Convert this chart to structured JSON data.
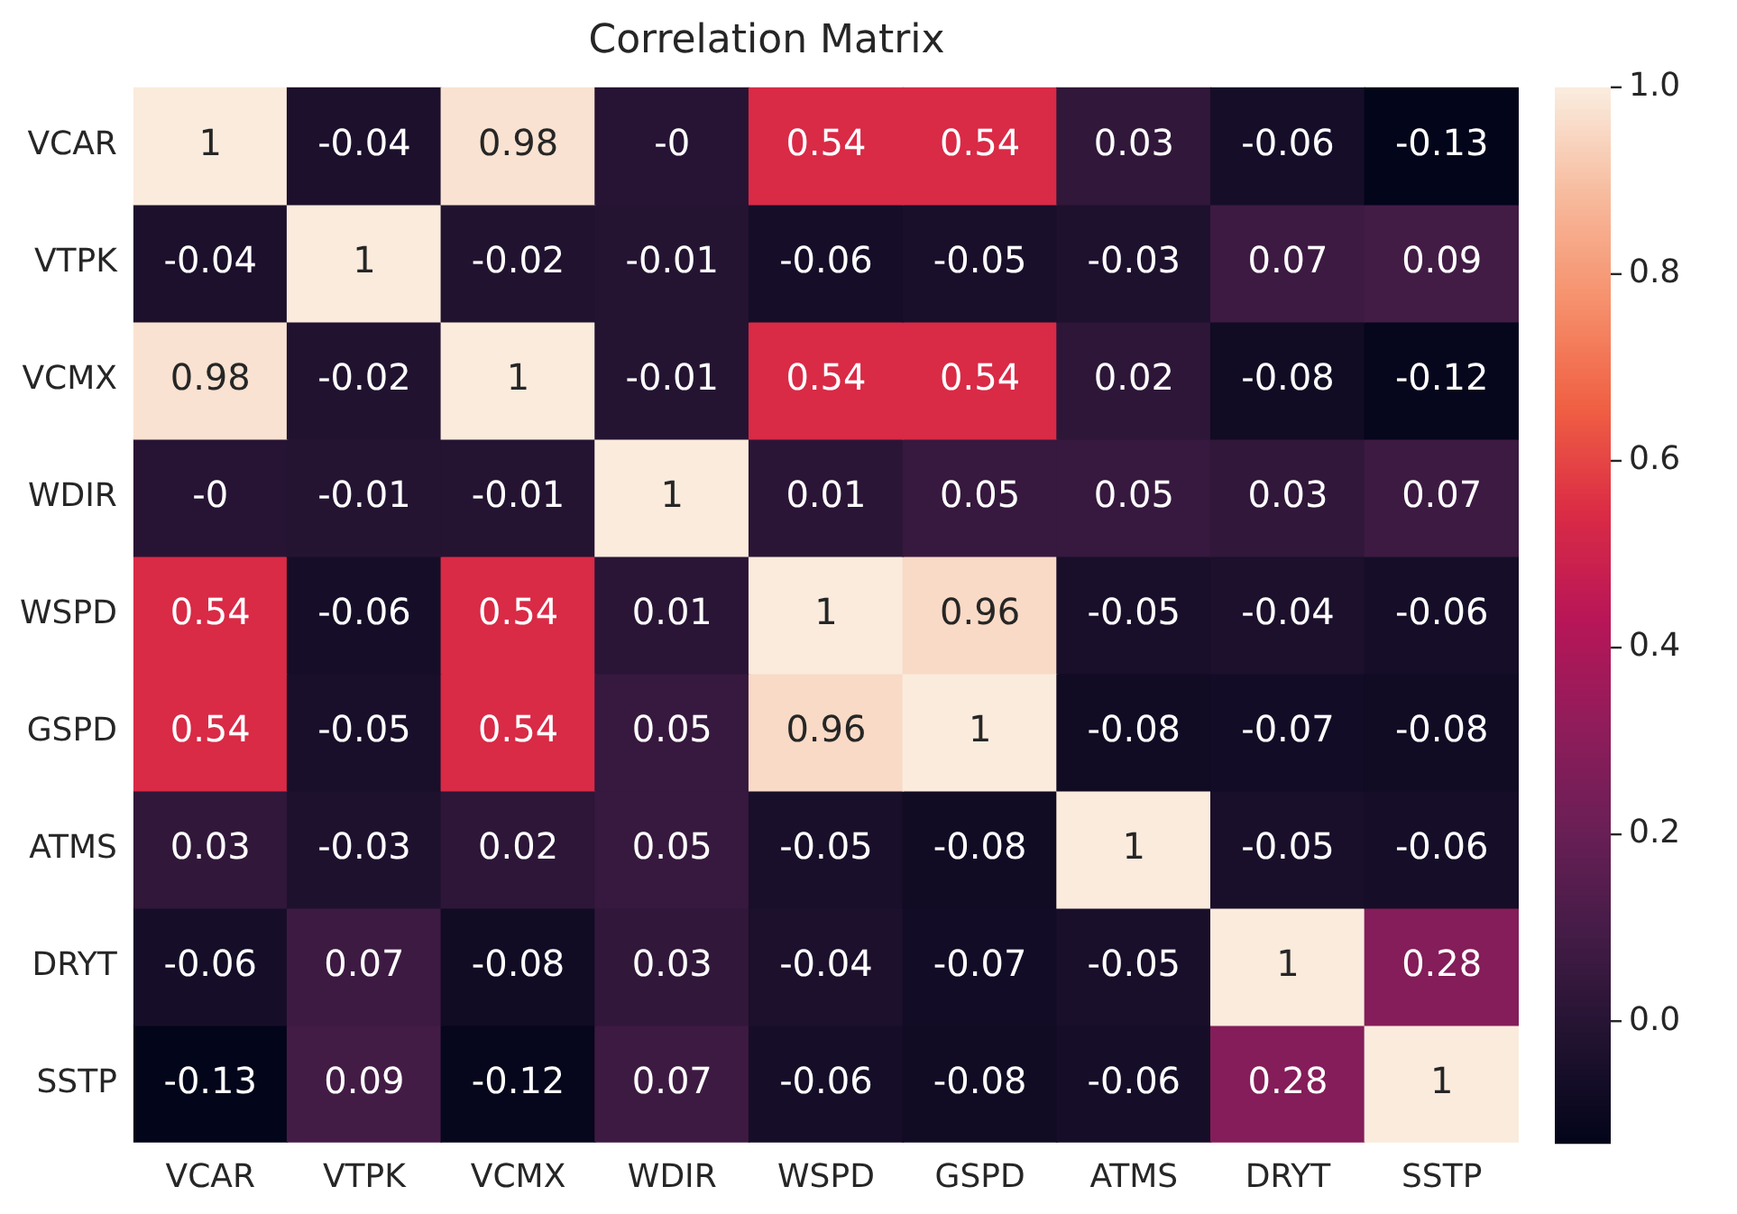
{
  "chart_data": {
    "type": "heatmap",
    "title": "Correlation Matrix",
    "categories": [
      "VCAR",
      "VTPK",
      "VCMX",
      "WDIR",
      "WSPD",
      "GSPD",
      "ATMS",
      "DRYT",
      "SSTP"
    ],
    "y_categories": [
      "VCAR",
      "VTPK",
      "VCMX",
      "WDIR",
      "WSPD",
      "GSPD",
      "ATMS",
      "DRYT",
      "SSTP"
    ],
    "cells": [
      [
        1,
        -0.04,
        0.98,
        0,
        0.54,
        0.54,
        0.03,
        -0.06,
        -0.13
      ],
      [
        -0.04,
        1,
        -0.02,
        -0.01,
        -0.06,
        -0.05,
        -0.03,
        0.07,
        0.09
      ],
      [
        0.98,
        -0.02,
        1,
        -0.01,
        0.54,
        0.54,
        0.02,
        -0.08,
        -0.12
      ],
      [
        0,
        -0.01,
        -0.01,
        1,
        0.01,
        0.05,
        0.05,
        0.03,
        0.07
      ],
      [
        0.54,
        -0.06,
        0.54,
        0.01,
        1,
        0.96,
        -0.05,
        -0.04,
        -0.06
      ],
      [
        0.54,
        -0.05,
        0.54,
        0.05,
        0.96,
        1,
        -0.08,
        -0.07,
        -0.08
      ],
      [
        0.03,
        -0.03,
        0.02,
        0.05,
        -0.05,
        -0.08,
        1,
        -0.05,
        -0.06
      ],
      [
        -0.06,
        0.07,
        -0.08,
        0.03,
        -0.04,
        -0.07,
        -0.05,
        1,
        0.28
      ],
      [
        -0.13,
        0.09,
        -0.12,
        0.07,
        -0.06,
        -0.08,
        -0.06,
        0.28,
        1
      ]
    ],
    "cell_labels": [
      [
        "1",
        "-0.04",
        "0.98",
        "-0",
        "0.54",
        "0.54",
        "0.03",
        "-0.06",
        "-0.13"
      ],
      [
        "-0.04",
        "1",
        "-0.02",
        "-0.01",
        "-0.06",
        "-0.05",
        "-0.03",
        "0.07",
        "0.09"
      ],
      [
        "0.98",
        "-0.02",
        "1",
        "-0.01",
        "0.54",
        "0.54",
        "0.02",
        "-0.08",
        "-0.12"
      ],
      [
        "-0",
        "-0.01",
        "-0.01",
        "1",
        "0.01",
        "0.05",
        "0.05",
        "0.03",
        "0.07"
      ],
      [
        "0.54",
        "-0.06",
        "0.54",
        "0.01",
        "1",
        "0.96",
        "-0.05",
        "-0.04",
        "-0.06"
      ],
      [
        "0.54",
        "-0.05",
        "0.54",
        "0.05",
        "0.96",
        "1",
        "-0.08",
        "-0.07",
        "-0.08"
      ],
      [
        "0.03",
        "-0.03",
        "0.02",
        "0.05",
        "-0.05",
        "-0.08",
        "1",
        "-0.05",
        "-0.06"
      ],
      [
        "-0.06",
        "0.07",
        "-0.08",
        "0.03",
        "-0.04",
        "-0.07",
        "-0.05",
        "1",
        "0.28"
      ],
      [
        "-0.13",
        "0.09",
        "-0.12",
        "0.07",
        "-0.06",
        "-0.08",
        "-0.06",
        "0.28",
        "1"
      ]
    ],
    "clim": [
      -0.13,
      1.0
    ],
    "cticks": [
      {
        "value": 0,
        "label": "0.0"
      },
      {
        "value": 0.2,
        "label": "0.2"
      },
      {
        "value": 0.4,
        "label": "0.4"
      },
      {
        "value": 0.6,
        "label": "0.6"
      },
      {
        "value": 0.8,
        "label": "0.8"
      },
      {
        "value": 1,
        "label": "1.0"
      }
    ]
  }
}
